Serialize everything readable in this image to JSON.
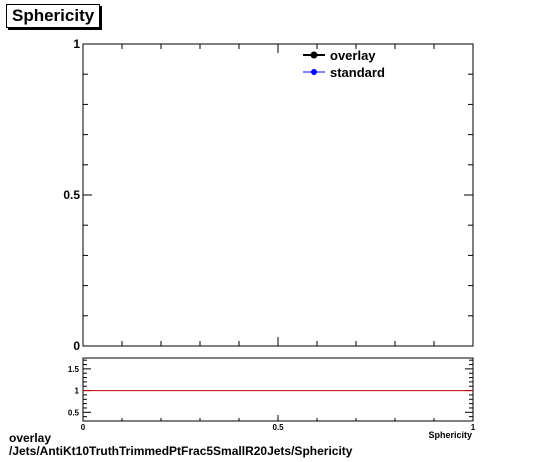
{
  "chart_data": [
    {
      "type": "line",
      "title": "Sphericity",
      "xlim": [
        0,
        1
      ],
      "ylim": [
        0,
        1
      ],
      "y_ticks": [
        "0",
        "0.5",
        "1"
      ],
      "legend": {
        "placement": "top-right",
        "entries": [
          {
            "label": "overlay",
            "color": "#000000"
          },
          {
            "label": "standard",
            "color": "#0000ff"
          }
        ]
      },
      "series": []
    },
    {
      "type": "line",
      "xlabel": "Sphericity",
      "xlim": [
        0,
        1
      ],
      "ylim": [
        0.3,
        1.75
      ],
      "x_ticks": [
        "0",
        "0.5",
        "1"
      ],
      "y_ticks": [
        "0.5",
        "1",
        "1.5"
      ],
      "reference_line": {
        "y": 1,
        "color": "#cc0000"
      }
    }
  ],
  "caption": {
    "line1": "overlay",
    "line2": "/Jets/AntiKt10TruthTrimmedPtFrac5SmallR20Jets/Sphericity"
  }
}
